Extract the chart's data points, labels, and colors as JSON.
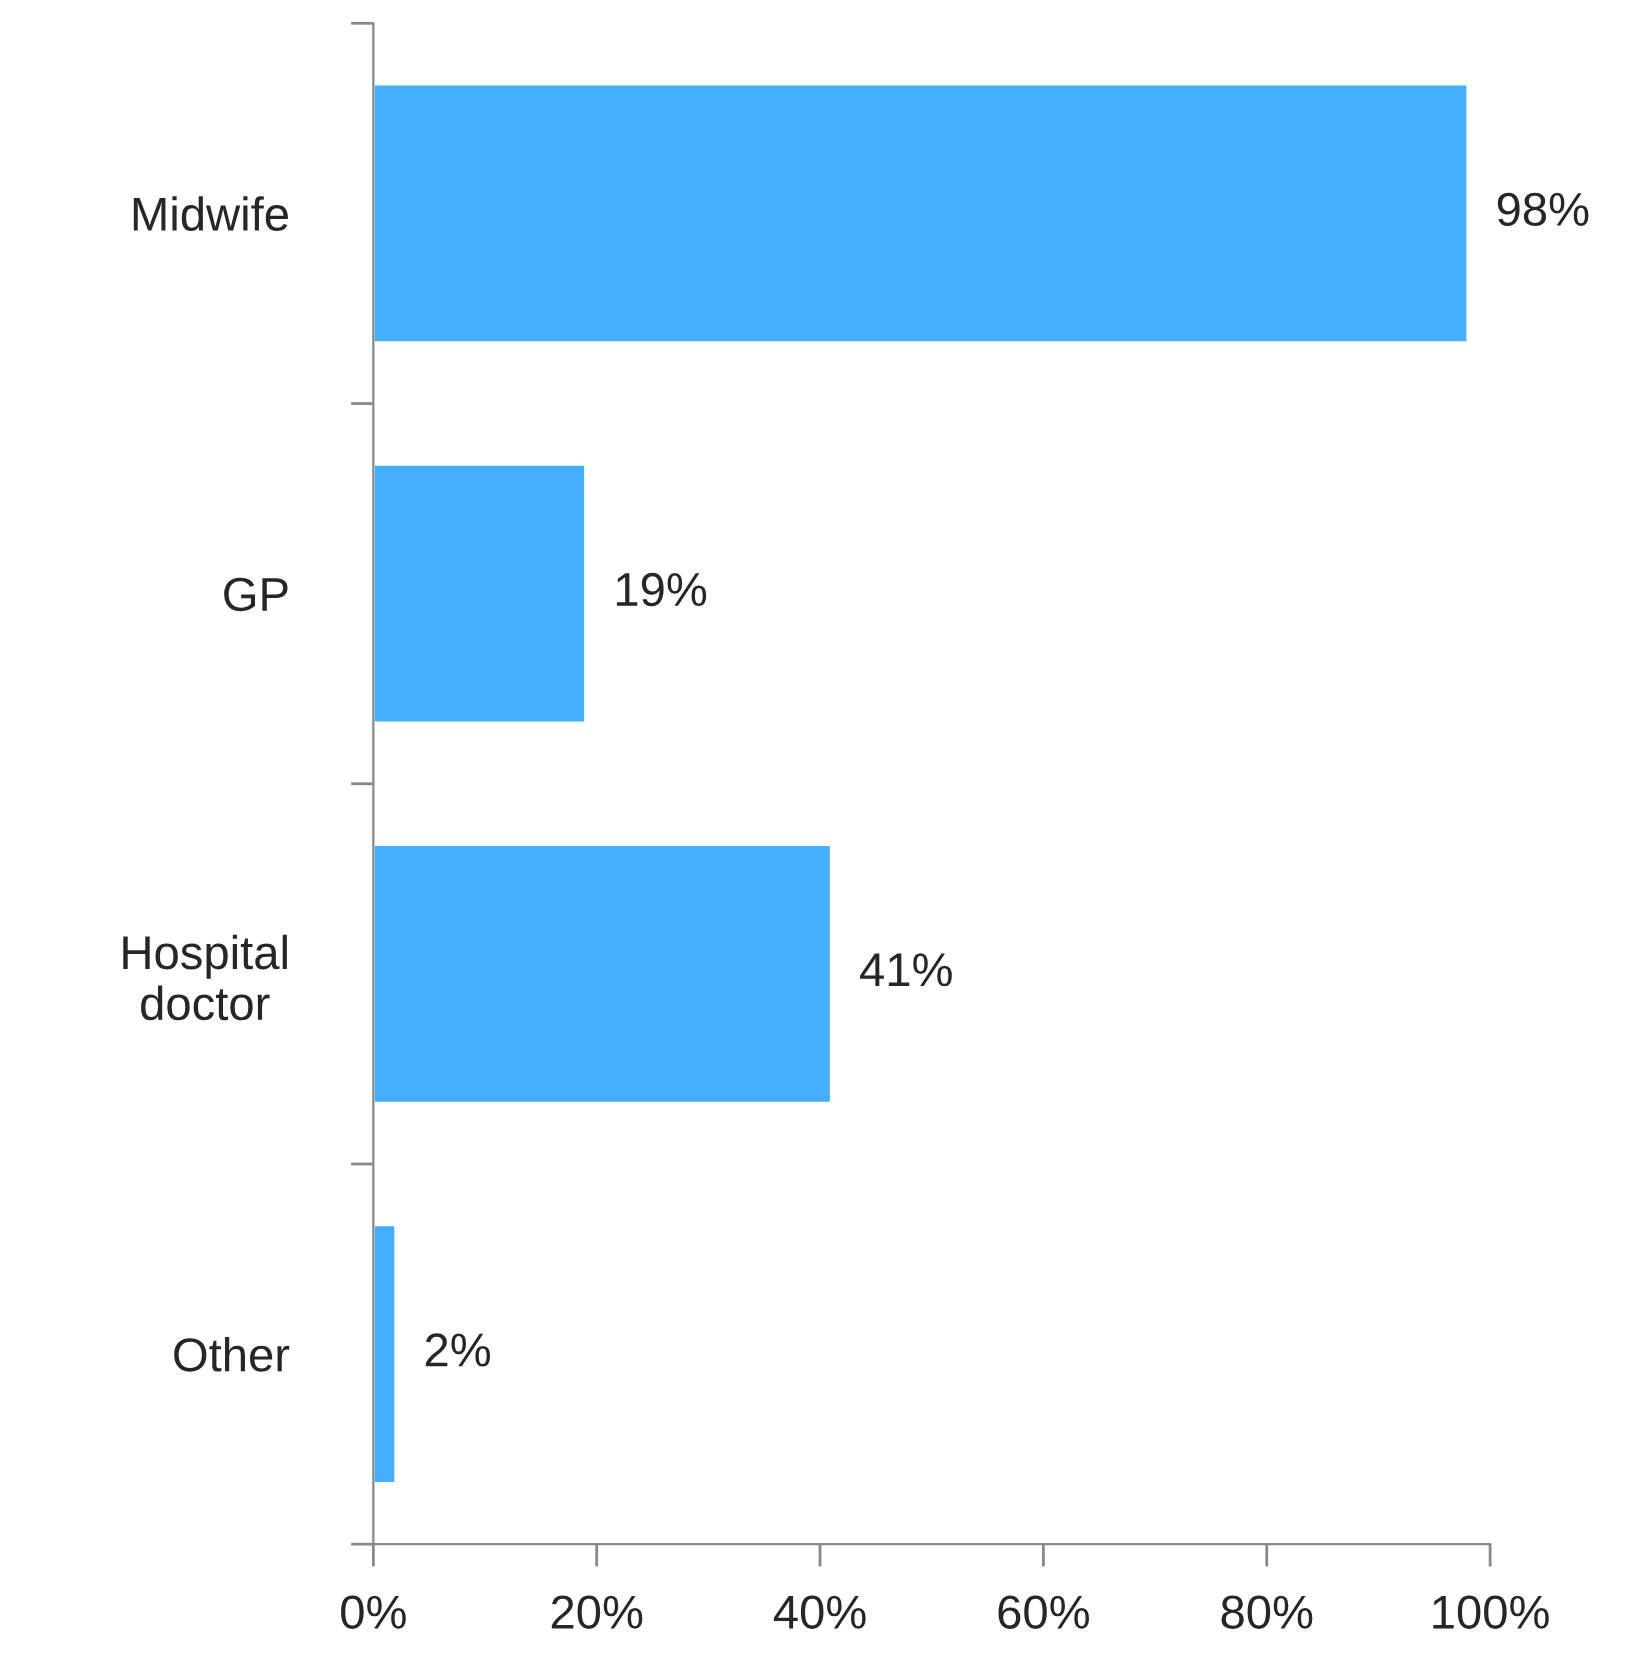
{
  "chart_data": {
    "type": "bar",
    "orientation": "horizontal",
    "categories": [
      "Midwife",
      "GP",
      "Hospital\ndoctor",
      "Other"
    ],
    "values": [
      98,
      19,
      41,
      2
    ],
    "value_labels": [
      "98%",
      "19%",
      "41%",
      "2%"
    ],
    "color": "#45aeff",
    "xlim": [
      0,
      100
    ],
    "xticks": [
      {
        "value": 0,
        "label": "0%"
      },
      {
        "value": 20,
        "label": "20%"
      },
      {
        "value": 40,
        "label": "40%"
      },
      {
        "value": 60,
        "label": "60%"
      },
      {
        "value": 80,
        "label": "80%"
      },
      {
        "value": 100,
        "label": "100%"
      }
    ],
    "grid": false
  }
}
